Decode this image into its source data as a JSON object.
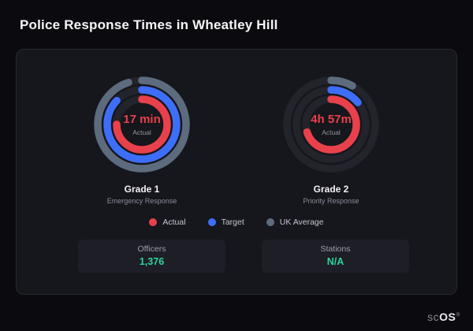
{
  "title": "Police Response Times in Wheatley Hill",
  "chart_data": {
    "type": "radial-gauge",
    "track_color": "#23232c",
    "legend_position": "bottom",
    "legend": [
      {
        "label": "Actual",
        "color": "#e8414b"
      },
      {
        "label": "Target",
        "color": "#3d6ef7"
      },
      {
        "label": "UK Average",
        "color": "#5c6b7d"
      }
    ],
    "gauges": [
      {
        "title": "Grade 1",
        "subtitle": "Emergency Response",
        "value_label": "17 min",
        "center_sublabel": "Actual",
        "rings": [
          {
            "name": "UK Average",
            "color": "#5c6b7d",
            "fraction": 0.95
          },
          {
            "name": "Target",
            "color": "#3d6ef7",
            "fraction": 0.87
          },
          {
            "name": "Actual",
            "color": "#e8414b",
            "fraction": 0.75
          }
        ]
      },
      {
        "title": "Grade 2",
        "subtitle": "Priority Response",
        "value_label": "4h 57m",
        "center_sublabel": "Actual",
        "rings": [
          {
            "name": "UK Average",
            "color": "#5c6b7d",
            "fraction": 0.08
          },
          {
            "name": "Target",
            "color": "#3d6ef7",
            "fraction": 0.14
          },
          {
            "name": "Actual",
            "color": "#e8414b",
            "fraction": 0.7
          }
        ]
      }
    ]
  },
  "stats": [
    {
      "label": "Officers",
      "value": "1,376"
    },
    {
      "label": "Stations",
      "value": "N/A"
    }
  ],
  "watermark": {
    "part1": "sc",
    "part2": "OS",
    "registered": "®"
  },
  "colors": {
    "value_red": "#e8414b",
    "stat_teal": "#2dd49f",
    "card_bg": "#16161d",
    "page_bg": "#0b0b0f"
  }
}
